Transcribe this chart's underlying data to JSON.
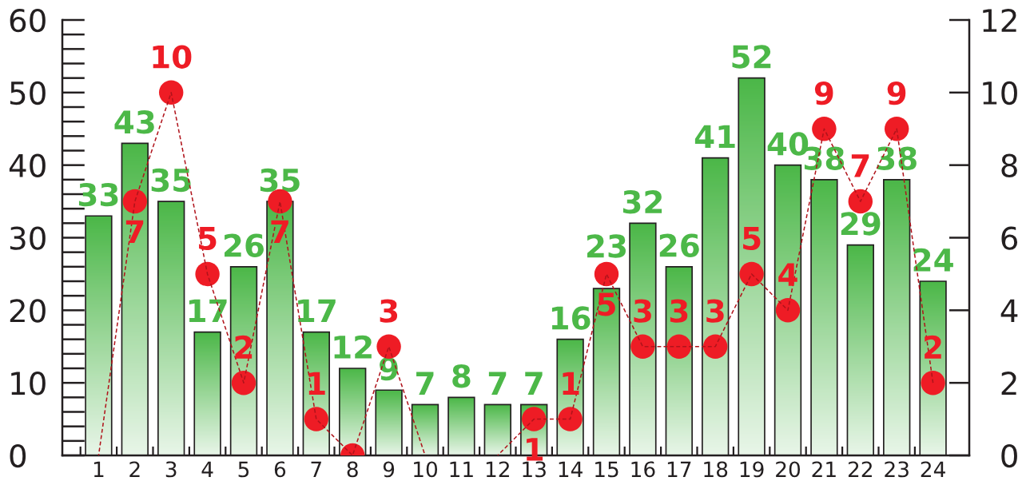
{
  "chart_data": {
    "type": "bar",
    "categories": [
      "1",
      "2",
      "3",
      "4",
      "5",
      "6",
      "7",
      "8",
      "9",
      "10",
      "11",
      "12",
      "13",
      "14",
      "15",
      "16",
      "17",
      "18",
      "19",
      "20",
      "21",
      "22",
      "23",
      "24"
    ],
    "series": [
      {
        "color": "#4cb848",
        "values": [
          33,
          43,
          35,
          17,
          26,
          35,
          17,
          12,
          9,
          7,
          8,
          7,
          7,
          16,
          23,
          32,
          26,
          41,
          52,
          40,
          38,
          29,
          38,
          24
        ],
        "value_labels": [
          "33",
          "43",
          "35",
          "17",
          "26",
          "35",
          "17",
          "12",
          "9",
          "7",
          "8",
          "7",
          "7",
          "16",
          "23",
          "32",
          "26",
          "41",
          "52",
          "40",
          "38",
          "29",
          "38",
          "24"
        ]
      },
      {
        "type": "line",
        "axis": "y2",
        "color": "#b0131b",
        "line_style": "dashed",
        "marker": "none",
        "values": [
          0,
          7,
          10,
          5,
          2,
          7,
          1,
          0,
          3,
          0,
          null,
          0,
          1,
          1,
          5,
          3,
          3,
          3,
          5,
          4,
          9,
          7,
          9,
          2
        ]
      },
      {
        "type": "scatter",
        "axis": "y2",
        "color": "#ee1c25",
        "marker": "circle",
        "values": [
          null,
          7,
          10,
          5,
          2,
          7,
          1,
          0,
          3,
          null,
          null,
          null,
          1,
          1,
          5,
          3,
          3,
          3,
          5,
          4,
          9,
          7,
          9,
          2
        ],
        "value_labels": [
          null,
          "7",
          "10",
          "5",
          "2",
          "7",
          "1",
          null,
          "3",
          null,
          null,
          null,
          "1",
          "1",
          "5",
          "3",
          "3",
          "3",
          "5",
          "4",
          "9",
          "7",
          "9",
          "2"
        ]
      }
    ],
    "ylim": [
      0,
      60
    ],
    "yticks": [
      0,
      10,
      20,
      30,
      40,
      50,
      60
    ],
    "y2lim": [
      0,
      12
    ],
    "y2ticks": [
      0,
      2,
      4,
      6,
      8,
      10,
      12
    ]
  }
}
